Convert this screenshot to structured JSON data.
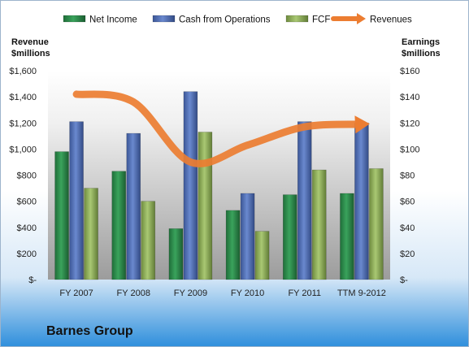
{
  "chart_data": {
    "type": "bar",
    "title": "Barnes Group",
    "categories": [
      "FY 2007",
      "FY 2008",
      "FY 2009",
      "FY 2010",
      "FY 2011",
      "TTM 9-2012"
    ],
    "left_axis": {
      "label_line1": "Revenue",
      "label_line2": "$millions",
      "ylim": [
        0,
        1600
      ],
      "ticks": [
        0,
        200,
        400,
        600,
        800,
        1000,
        1200,
        1400,
        1600
      ],
      "tick_labels": [
        "$-",
        "$200",
        "$400",
        "$600",
        "$800",
        "$1,000",
        "$1,200",
        "$1,400",
        "$1,600"
      ]
    },
    "right_axis": {
      "label_line1": "Earnings",
      "label_line2": "$millions",
      "ylim": [
        0,
        160
      ],
      "ticks": [
        0,
        20,
        40,
        60,
        80,
        100,
        120,
        140,
        160
      ],
      "tick_labels": [
        "$-",
        "$20",
        "$40",
        "$60",
        "$80",
        "$100",
        "$120",
        "$140",
        "$160"
      ]
    },
    "series": [
      {
        "name": "Net Income",
        "type": "bar",
        "axis": "right",
        "color": "#2e8b4c",
        "values": [
          98,
          83,
          39,
          53,
          65,
          66
        ]
      },
      {
        "name": "Cash from Operations",
        "type": "bar",
        "axis": "right",
        "color": "#4f6fb5",
        "values": [
          121,
          112,
          144,
          66,
          121,
          120
        ]
      },
      {
        "name": "FCF",
        "type": "bar",
        "axis": "right",
        "color": "#8faf5a",
        "values": [
          70,
          60,
          113,
          37,
          84,
          85
        ]
      },
      {
        "name": "Revenues",
        "type": "line",
        "axis": "left",
        "color": "#ec7d31",
        "values": [
          1420,
          1360,
          900,
          1030,
          1170,
          1190
        ]
      }
    ],
    "legend_position": "top",
    "grid": false
  }
}
